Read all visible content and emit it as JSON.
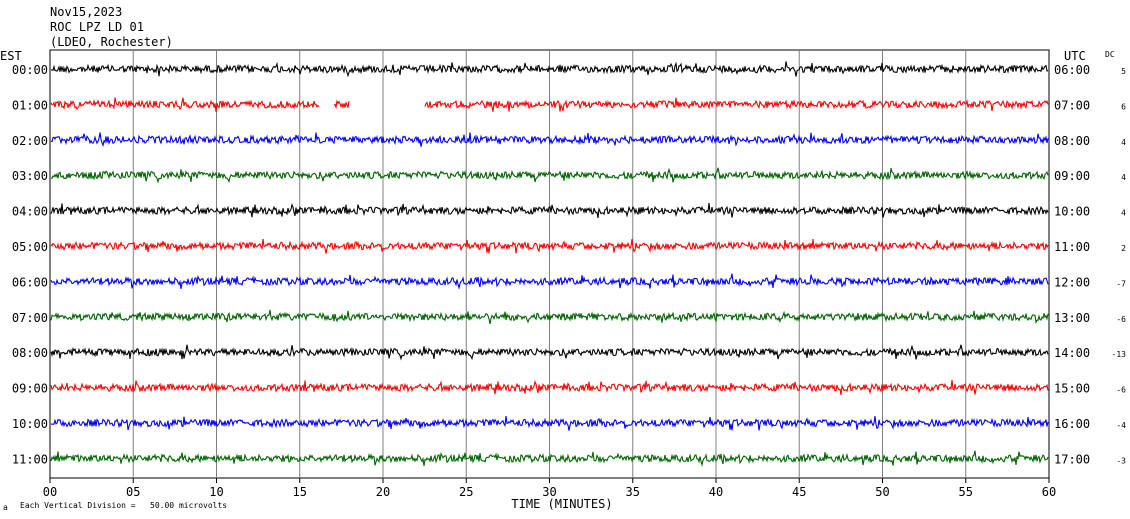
{
  "header": {
    "date": "Nov15,2023",
    "station": "ROC LPZ LD 01",
    "network": "(LDEO, Rochester)"
  },
  "chart_data": {
    "type": "line",
    "left_header": "EST",
    "right_header": "UTC",
    "dc_header": "DC",
    "xlabel": "TIME (MINUTES)",
    "x_ticks": [
      "00",
      "05",
      "10",
      "15",
      "20",
      "25",
      "30",
      "35",
      "40",
      "45",
      "50",
      "55",
      "60"
    ],
    "xlim": [
      0,
      60
    ],
    "grid": true,
    "footer_note": "Each Vertical Division =   50.00 microvolts",
    "footer_mark": "a",
    "rows": [
      {
        "est": "00:00",
        "utc": "06:00",
        "dc": "5",
        "color": "#000000"
      },
      {
        "est": "01:00",
        "utc": "07:00",
        "dc": "6",
        "color": "#ff0000",
        "gaps": [
          [
            16.2,
            17.0
          ],
          [
            18.0,
            22.5
          ]
        ]
      },
      {
        "est": "02:00",
        "utc": "08:00",
        "dc": "4",
        "color": "#0000ff"
      },
      {
        "est": "03:00",
        "utc": "09:00",
        "dc": "4",
        "color": "#006400"
      },
      {
        "est": "04:00",
        "utc": "10:00",
        "dc": "4",
        "color": "#000000"
      },
      {
        "est": "05:00",
        "utc": "11:00",
        "dc": "2",
        "color": "#ff0000"
      },
      {
        "est": "06:00",
        "utc": "12:00",
        "dc": "-7",
        "color": "#0000ff"
      },
      {
        "est": "07:00",
        "utc": "13:00",
        "dc": "-6",
        "color": "#006400"
      },
      {
        "est": "08:00",
        "utc": "14:00",
        "dc": "-13",
        "color": "#000000"
      },
      {
        "est": "09:00",
        "utc": "15:00",
        "dc": "-6",
        "color": "#ff0000"
      },
      {
        "est": "10:00",
        "utc": "16:00",
        "dc": "-4",
        "color": "#0000ff"
      },
      {
        "est": "11:00",
        "utc": "17:00",
        "dc": "-3",
        "color": "#006400"
      }
    ]
  }
}
